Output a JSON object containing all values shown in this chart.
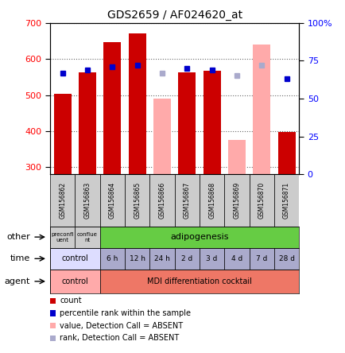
{
  "title": "GDS2659 / AF024620_at",
  "samples": [
    "GSM156862",
    "GSM156863",
    "GSM156864",
    "GSM156865",
    "GSM156866",
    "GSM156867",
    "GSM156868",
    "GSM156869",
    "GSM156870",
    "GSM156871"
  ],
  "bar_values": [
    503,
    563,
    646,
    670,
    null,
    563,
    567,
    null,
    null,
    398
  ],
  "bar_values_absent": [
    null,
    null,
    null,
    null,
    491,
    null,
    null,
    376,
    641,
    null
  ],
  "rank_values": [
    67,
    69,
    71,
    72,
    null,
    70,
    69,
    null,
    null,
    63
  ],
  "rank_values_absent": [
    null,
    null,
    null,
    null,
    67,
    null,
    null,
    65,
    72,
    null
  ],
  "ylim_left": [
    280,
    700
  ],
  "ylim_right": [
    0,
    100
  ],
  "bar_color": "#cc0000",
  "bar_absent_color": "#ffaaaa",
  "rank_color": "#0000cc",
  "rank_absent_color": "#aaaacc",
  "sample_bg": "#cccccc",
  "other_color": "#66cc44",
  "control_other_color": "#cccccc",
  "time_control_color": "#ddddff",
  "time_color": "#aaaacc",
  "agent_control_color": "#ffaaaa",
  "agent_color": "#ee7766",
  "legend": [
    {
      "color": "#cc0000",
      "label": "count"
    },
    {
      "color": "#0000cc",
      "label": "percentile rank within the sample"
    },
    {
      "color": "#ffaaaa",
      "label": "value, Detection Call = ABSENT"
    },
    {
      "color": "#aaaacc",
      "label": "rank, Detection Call = ABSENT"
    }
  ],
  "n_samples": 10,
  "time_labels": [
    "6 h",
    "12 h",
    "24 h",
    "2 d",
    "3 d",
    "4 d",
    "7 d",
    "28 d"
  ]
}
